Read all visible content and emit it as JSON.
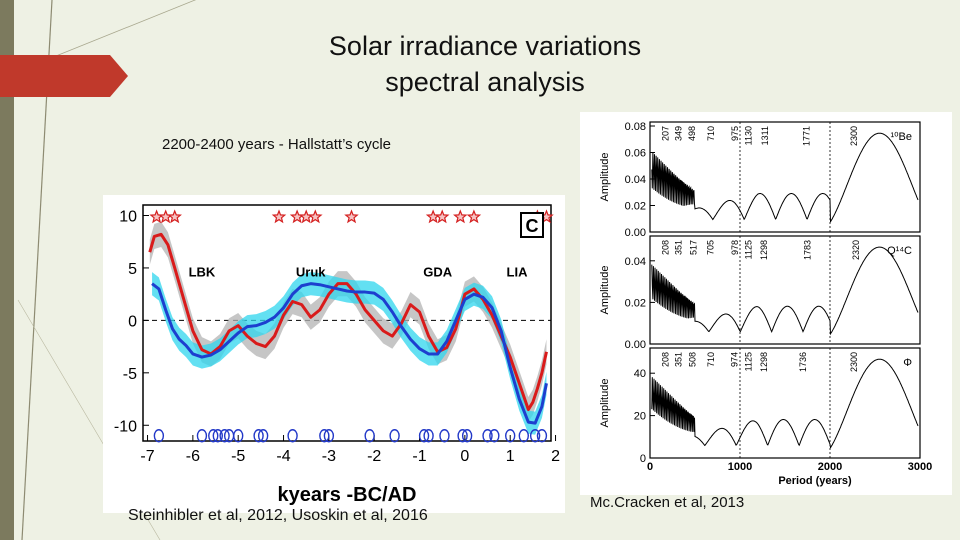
{
  "slide": {
    "title_line1": "Solar irradiance variations",
    "title_line2": "spectral analysis",
    "caption": "2200-2400 years - Hallstatt’s cycle",
    "credit_left": "Steinhibler et al, 2012, Usoskin et al, 2016",
    "credit_right": "Mc.Cracken et al, 2013",
    "accent_color": "#c0392b",
    "background": "#eef1e4"
  },
  "chart_data": [
    {
      "type": "line",
      "title": "",
      "xlabel": "kyears -BC/AD",
      "ylabel": "",
      "xlim": [
        -7.1,
        1.9
      ],
      "ylim": [
        -11.5,
        11
      ],
      "x_ticks": [
        "-7",
        "-6",
        "-5",
        "-4",
        "-3",
        "-2",
        "-1",
        "0",
        "1",
        "2"
      ],
      "y_ticks": [
        "10",
        "5",
        "0",
        "-5",
        "-10"
      ],
      "panel_label": "C",
      "event_labels": [
        "LBK",
        "Uruk",
        "GDA",
        "LIA"
      ],
      "stars_x": [
        -6.8,
        -6.6,
        -6.4,
        -4.1,
        -3.7,
        -3.5,
        -3.3,
        -2.5,
        -0.7,
        -0.5,
        -0.1,
        0.2,
        1.6,
        1.8
      ],
      "circles_x": [
        -6.75,
        -5.8,
        -5.55,
        -5.45,
        -5.3,
        -5.2,
        -5.0,
        -4.55,
        -4.45,
        -3.8,
        -3.1,
        -3.0,
        -2.1,
        -1.55,
        -0.9,
        -0.8,
        -0.45,
        -0.05,
        0.05,
        0.5,
        0.65,
        1.0,
        1.3,
        1.55,
        1.7
      ],
      "series": [
        {
          "color": "#d91b1b",
          "x": [
            -6.95,
            -6.85,
            -6.7,
            -6.55,
            -6.4,
            -6.2,
            -6.0,
            -5.8,
            -5.6,
            -5.4,
            -5.2,
            -5.0,
            -4.8,
            -4.6,
            -4.4,
            -4.2,
            -4.0,
            -3.8,
            -3.6,
            -3.4,
            -3.2,
            -3.0,
            -2.8,
            -2.6,
            -2.4,
            -2.2,
            -2.0,
            -1.8,
            -1.6,
            -1.4,
            -1.2,
            -1.0,
            -0.8,
            -0.6,
            -0.4,
            -0.2,
            0.0,
            0.2,
            0.4,
            0.6,
            0.8,
            1.0,
            1.2,
            1.4,
            1.5,
            1.6,
            1.7,
            1.8
          ],
          "y": [
            6.5,
            8.0,
            8.2,
            7.2,
            5.0,
            2.0,
            -1.0,
            -2.8,
            -3.2,
            -2.5,
            -1.0,
            -0.5,
            -1.5,
            -2.2,
            -2.5,
            -1.5,
            0.5,
            1.8,
            1.5,
            0.3,
            1.0,
            2.5,
            3.5,
            3.5,
            2.5,
            1.0,
            0.0,
            -1.0,
            -1.5,
            -0.3,
            1.5,
            0.8,
            -1.5,
            -3.0,
            -2.6,
            -0.8,
            2.5,
            3.0,
            2.0,
            0.5,
            -1.5,
            -3.5,
            -6.0,
            -8.5,
            -7.8,
            -6.5,
            -5.0,
            -3.0
          ]
        },
        {
          "color": "#1d3fcf",
          "x": [
            -6.9,
            -6.75,
            -6.6,
            -6.45,
            -6.3,
            -6.15,
            -6.0,
            -5.8,
            -5.6,
            -5.4,
            -5.2,
            -5.0,
            -4.8,
            -4.6,
            -4.4,
            -4.2,
            -4.0,
            -3.8,
            -3.6,
            -3.4,
            -3.2,
            -3.0,
            -2.8,
            -2.6,
            -2.4,
            -2.2,
            -2.0,
            -1.8,
            -1.6,
            -1.4,
            -1.2,
            -1.0,
            -0.8,
            -0.6,
            -0.4,
            -0.2,
            0.0,
            0.2,
            0.4,
            0.6,
            0.8,
            1.0,
            1.2,
            1.4,
            1.55,
            1.7,
            1.8
          ],
          "y": [
            3.5,
            3.0,
            1.0,
            -0.8,
            -1.8,
            -2.4,
            -3.2,
            -3.5,
            -3.3,
            -2.8,
            -2.0,
            -1.2,
            -0.6,
            -0.5,
            -0.2,
            0.3,
            1.2,
            2.5,
            3.3,
            3.5,
            3.4,
            3.2,
            3.0,
            2.8,
            2.7,
            2.7,
            2.6,
            2.0,
            0.8,
            -0.6,
            -1.8,
            -2.7,
            -3.2,
            -3.2,
            -2.0,
            0.0,
            2.0,
            2.5,
            2.2,
            1.2,
            -1.0,
            -4.5,
            -7.5,
            -9.7,
            -9.8,
            -8.2,
            -6.0
          ]
        }
      ]
    },
    {
      "type": "line",
      "title": "",
      "xlabel": "Period (years)",
      "ylabel": "Amplitude",
      "xlim": [
        0,
        3000
      ],
      "x_ticks": [
        "0",
        "1000",
        "2000",
        "3000"
      ],
      "panels": [
        {
          "name": "¹⁰Be",
          "y_ticks": [
            "0.08",
            "0.06",
            "0.04",
            "0.02",
            "0.00"
          ],
          "ylim": [
            0,
            0.08
          ],
          "peak_labels": [
            "207",
            "349",
            "498",
            "710",
            "975",
            "1130",
            "1311",
            "1771",
            "2300"
          ]
        },
        {
          "name": "Q¹⁴C",
          "y_ticks": [
            "0.04",
            "0.02",
            "0.00"
          ],
          "ylim": [
            0,
            0.05
          ],
          "peak_labels": [
            "208",
            "351",
            "517",
            "705",
            "978",
            "1125",
            "1298",
            "1783",
            "2320"
          ]
        },
        {
          "name": "Φ",
          "y_ticks": [
            "40",
            "20",
            "0"
          ],
          "ylim": [
            0,
            50
          ],
          "peak_labels": [
            "208",
            "351",
            "508",
            "710",
            "974",
            "1125",
            "1298",
            "1736",
            "2300"
          ]
        }
      ]
    }
  ]
}
